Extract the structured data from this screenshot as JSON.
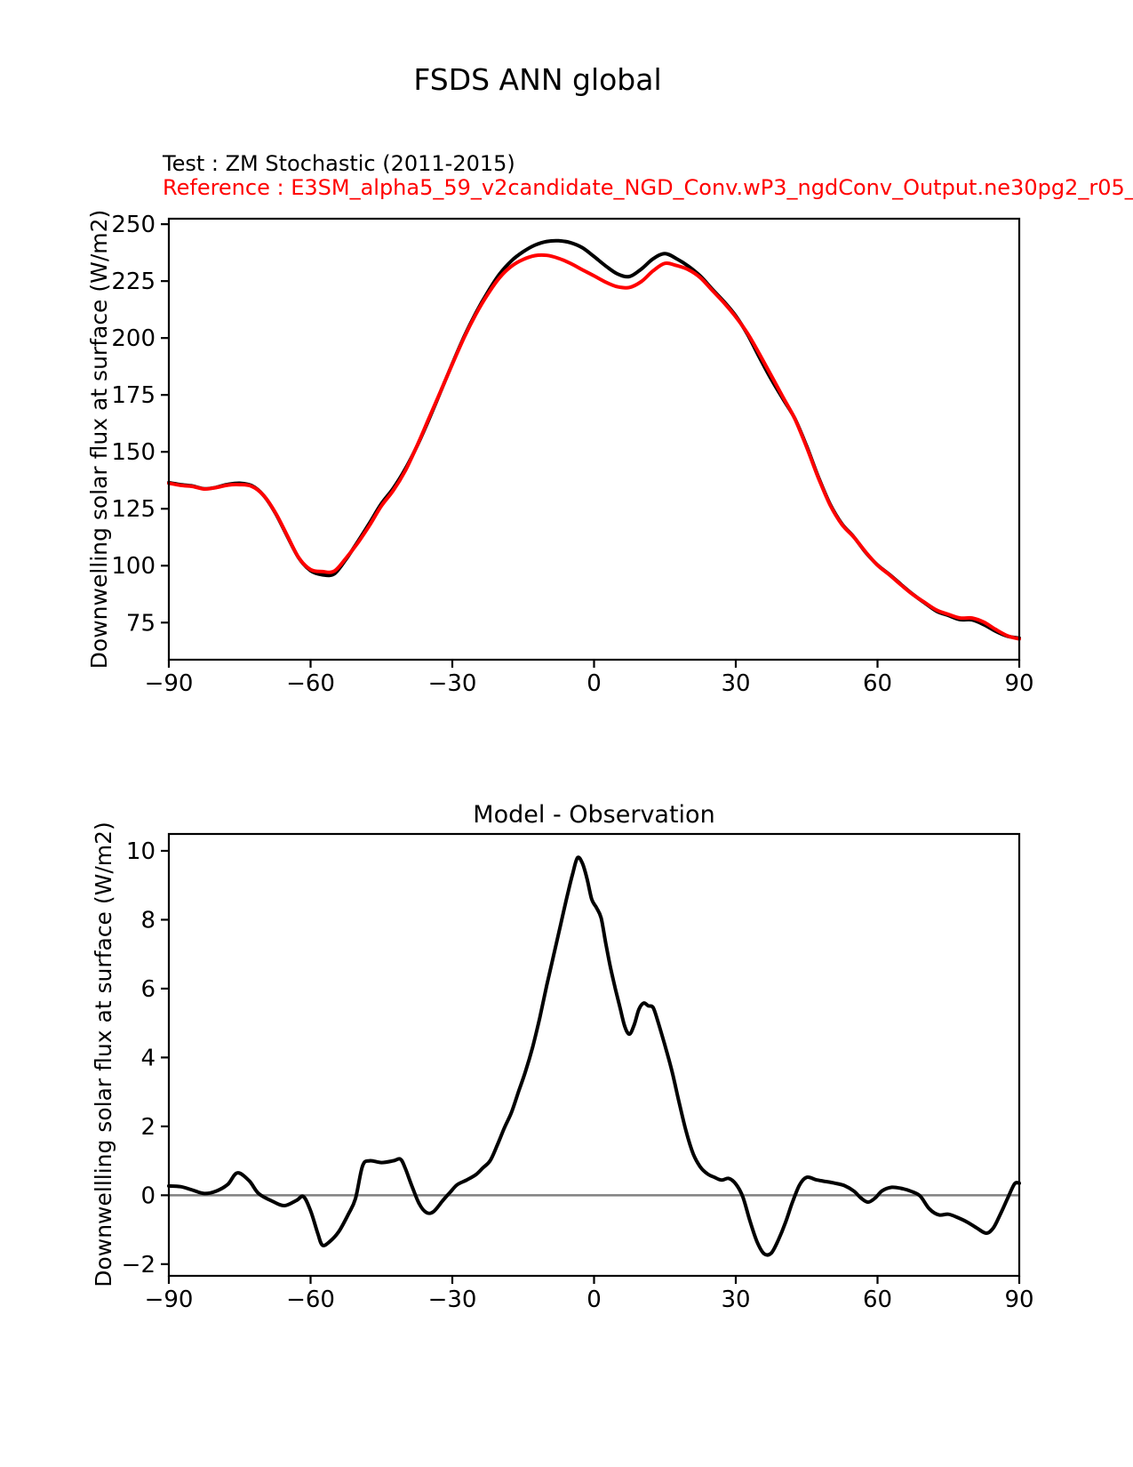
{
  "figure": {
    "title": "FSDS ANN global",
    "legend": {
      "test_label": "Test : ZM Stochastic (2011-2015)",
      "reference_label": "Reference : E3SM_alpha5_59_v2candidate_NGD_Conv.wP3_ngdConv_Output.ne30pg2_r05_"
    },
    "colors": {
      "test": "#000000",
      "reference": "#ff0000",
      "diff": "#000000",
      "zero_line": "#808080"
    }
  },
  "chart_data": [
    {
      "type": "line",
      "title": "",
      "xlabel": "",
      "ylabel": "Downwelling solar flux at surface (W/m2)",
      "legend_position": "above-left",
      "grid": false,
      "xlim": [
        -90,
        90
      ],
      "ylim": [
        58.7,
        252.4
      ],
      "xticks": [
        -90,
        -60,
        -30,
        0,
        30,
        60,
        90
      ],
      "xtick_labels": [
        "−90",
        "−60",
        "−30",
        "0",
        "30",
        "60",
        "90"
      ],
      "yticks": [
        75,
        100,
        125,
        150,
        175,
        200,
        225,
        250
      ],
      "ytick_labels": [
        "75",
        "100",
        "125",
        "150",
        "175",
        "200",
        "225",
        "250"
      ],
      "x": [
        -90,
        -87.5,
        -85,
        -82.5,
        -80,
        -77.5,
        -75,
        -72.5,
        -70,
        -67.5,
        -65,
        -62.5,
        -60,
        -57.5,
        -55,
        -52.5,
        -50,
        -47.5,
        -45,
        -42.5,
        -40,
        -37.5,
        -35,
        -32.5,
        -30,
        -27.5,
        -25,
        -22.5,
        -20,
        -17.5,
        -15,
        -12.5,
        -10,
        -7.5,
        -5,
        -2.5,
        0,
        2.5,
        5,
        7.5,
        10,
        12.5,
        15,
        17.5,
        20,
        22.5,
        25,
        27.5,
        30,
        32.5,
        35,
        37.5,
        40,
        42.5,
        45,
        47.5,
        50,
        52.5,
        55,
        57.5,
        60,
        62.5,
        65,
        67.5,
        70,
        72.5,
        75,
        77.5,
        80,
        82.5,
        85,
        87.5,
        90
      ],
      "series": [
        {
          "name": "Test : ZM Stochastic (2011-2015)",
          "color": "#000000",
          "values": [
            136.5,
            135.6,
            135.0,
            133.8,
            134.4,
            135.7,
            136.2,
            135.2,
            131.0,
            123.3,
            113.2,
            103.4,
            97.8,
            96.0,
            96.4,
            102.8,
            110.6,
            118.8,
            127.3,
            134.0,
            142.3,
            152.4,
            164.0,
            176.3,
            188.7,
            200.6,
            211.1,
            220.2,
            228.1,
            233.9,
            237.9,
            240.8,
            242.4,
            242.7,
            241.9,
            239.7,
            235.8,
            231.6,
            228.1,
            227.0,
            230.3,
            234.8,
            237.1,
            234.8,
            231.5,
            227.2,
            221.5,
            216.0,
            209.7,
            201.5,
            191.5,
            181.9,
            173.2,
            164.6,
            152.5,
            138.9,
            126.9,
            118.3,
            112.6,
            105.8,
            100.3,
            96.2,
            91.7,
            87.4,
            83.6,
            80.0,
            78.1,
            76.3,
            76.2,
            74.1,
            71.2,
            69.0,
            68.2
          ]
        },
        {
          "name": "Reference : E3SM_alpha5_59_v2candidate_NGD_Conv.wP3_ngdConv_Output.ne30pg2_r05_",
          "color": "#ff0000",
          "values": [
            136.2,
            135.3,
            134.8,
            133.7,
            134.3,
            135.4,
            135.6,
            134.9,
            131.0,
            123.5,
            113.5,
            103.5,
            98.3,
            97.4,
            97.6,
            103.3,
            110.0,
            117.8,
            126.3,
            133.0,
            141.5,
            152.5,
            164.5,
            176.5,
            188.5,
            200.2,
            210.5,
            219.2,
            226.5,
            231.5,
            234.5,
            236.2,
            236.3,
            235.0,
            232.8,
            230.0,
            227.3,
            224.5,
            222.5,
            222.2,
            224.8,
            229.5,
            232.8,
            231.8,
            230.0,
            226.5,
            221.0,
            215.5,
            209.3,
            202.0,
            193.0,
            183.5,
            174.0,
            164.5,
            152.0,
            138.5,
            126.5,
            118.0,
            112.5,
            106.0,
            100.2,
            96.0,
            91.5,
            87.3,
            83.8,
            80.5,
            78.6,
            77.0,
            77.0,
            75.2,
            72.0,
            69.2,
            67.8
          ]
        }
      ]
    },
    {
      "type": "line",
      "title": "Model - Observation",
      "xlabel": "",
      "ylabel": "Downwellling solar flux at surface (W/m2)",
      "grid": false,
      "xlim": [
        -90,
        90
      ],
      "ylim": [
        -2.34,
        10.49
      ],
      "xticks": [
        -90,
        -60,
        -30,
        0,
        30,
        60,
        90
      ],
      "xtick_labels": [
        "−90",
        "−60",
        "−30",
        "0",
        "30",
        "60",
        "90"
      ],
      "yticks": [
        -2,
        0,
        2,
        4,
        6,
        8,
        10
      ],
      "ytick_labels": [
        "−2",
        "0",
        "2",
        "4",
        "6",
        "8",
        "10"
      ],
      "zero_line": {
        "y": 0,
        "color": "#808080"
      },
      "x": [
        -90,
        -87.5,
        -85,
        -82.5,
        -80,
        -77.5,
        -75.5,
        -73,
        -71,
        -68,
        -65.5,
        -63,
        -61.5,
        -60,
        -58.5,
        -57.5,
        -56,
        -54,
        -52,
        -50.5,
        -49,
        -47.5,
        -45,
        -42.5,
        -41,
        -40,
        -38.5,
        -37,
        -35.5,
        -34,
        -32,
        -30.5,
        -29,
        -27,
        -25,
        -23.5,
        -22,
        -20.5,
        -19,
        -17.5,
        -16,
        -14.5,
        -13,
        -11.5,
        -10,
        -8.5,
        -7,
        -5.5,
        -4.5,
        -3.5,
        -2.5,
        -1.5,
        -0.5,
        0.5,
        1.5,
        2.5,
        3.5,
        4.5,
        5.5,
        6.5,
        7.5,
        8.5,
        9.5,
        10.5,
        11.5,
        12.5,
        13.5,
        15,
        16.5,
        18,
        19.5,
        21,
        22.5,
        24,
        25.5,
        27,
        28.5,
        30,
        31.5,
        33,
        34.5,
        36,
        37.5,
        39,
        40.5,
        42,
        43.5,
        45,
        47,
        49,
        51,
        53,
        55,
        56.5,
        58,
        59.5,
        61,
        63,
        65,
        67,
        69,
        71,
        73,
        75,
        77,
        79,
        81,
        83,
        84.5,
        86,
        87.5,
        89,
        90
      ],
      "series": [
        {
          "name": "Model - Observation",
          "color": "#000000",
          "values": [
            0.27,
            0.25,
            0.15,
            0.05,
            0.12,
            0.32,
            0.65,
            0.42,
            0.05,
            -0.18,
            -0.3,
            -0.15,
            -0.04,
            -0.45,
            -1.1,
            -1.45,
            -1.35,
            -1.05,
            -0.55,
            -0.1,
            0.85,
            1.0,
            0.95,
            1.0,
            1.05,
            0.8,
            0.25,
            -0.25,
            -0.5,
            -0.48,
            -0.15,
            0.08,
            0.3,
            0.44,
            0.6,
            0.8,
            1.0,
            1.45,
            1.95,
            2.4,
            3.0,
            3.6,
            4.3,
            5.15,
            6.1,
            7.0,
            7.9,
            8.8,
            9.35,
            9.8,
            9.65,
            9.2,
            8.6,
            8.35,
            8.05,
            7.3,
            6.6,
            6.0,
            5.45,
            4.9,
            4.68,
            4.95,
            5.4,
            5.58,
            5.5,
            5.45,
            5.05,
            4.35,
            3.6,
            2.7,
            1.85,
            1.2,
            0.82,
            0.62,
            0.52,
            0.44,
            0.49,
            0.33,
            -0.05,
            -0.75,
            -1.35,
            -1.7,
            -1.68,
            -1.3,
            -0.8,
            -0.2,
            0.3,
            0.52,
            0.45,
            0.4,
            0.35,
            0.28,
            0.12,
            -0.08,
            -0.2,
            -0.08,
            0.13,
            0.23,
            0.2,
            0.12,
            -0.02,
            -0.4,
            -0.57,
            -0.55,
            -0.65,
            -0.78,
            -0.95,
            -1.1,
            -0.95,
            -0.55,
            -0.1,
            0.33,
            0.35
          ]
        }
      ]
    }
  ]
}
